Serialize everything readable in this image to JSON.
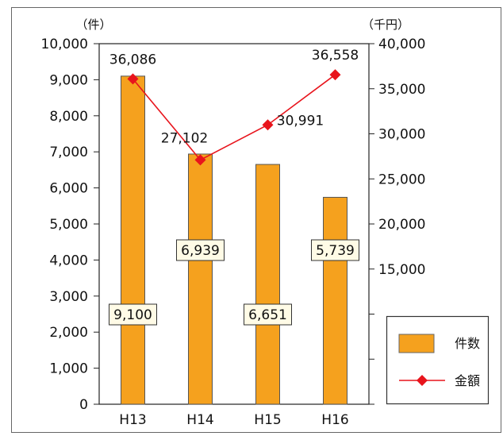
{
  "chart_data": {
    "type": "bar+line",
    "categories": [
      "H13",
      "H14",
      "H15",
      "H16"
    ],
    "series": [
      {
        "name": "件数",
        "type": "bar",
        "axis": "left",
        "values": [
          9100,
          6939,
          6651,
          5739
        ],
        "labels": [
          "9,100",
          "6,939",
          "6,651",
          "5,739"
        ],
        "color": "#F5A11E"
      },
      {
        "name": "金額",
        "type": "line",
        "axis": "right",
        "values": [
          36086,
          27102,
          30991,
          36558
        ],
        "labels": [
          "36,086",
          "27,102",
          "30,991",
          "36,558"
        ],
        "color": "#E8141C"
      }
    ],
    "left_axis": {
      "unit": "（件）",
      "ylim": [
        0,
        10000
      ],
      "ticks": [
        0,
        1000,
        2000,
        3000,
        4000,
        5000,
        6000,
        7000,
        8000,
        9000,
        10000
      ],
      "tick_labels": [
        "0",
        "1,000",
        "2,000",
        "3,000",
        "4,000",
        "5,000",
        "6,000",
        "7,000",
        "8,000",
        "9,000",
        "10,000"
      ]
    },
    "right_axis": {
      "unit": "（千円）",
      "ylim": [
        0,
        40000
      ],
      "ticks": [
        0,
        5000,
        10000,
        15000,
        20000,
        25000,
        30000,
        35000,
        40000
      ],
      "tick_labels": [
        "",
        "",
        "",
        "15,000",
        "20,000",
        "25,000",
        "30,000",
        "35,000",
        "40,000"
      ]
    },
    "legend": {
      "placement": "bottom-right",
      "items": [
        "件数",
        "金額"
      ]
    },
    "grid": false
  }
}
